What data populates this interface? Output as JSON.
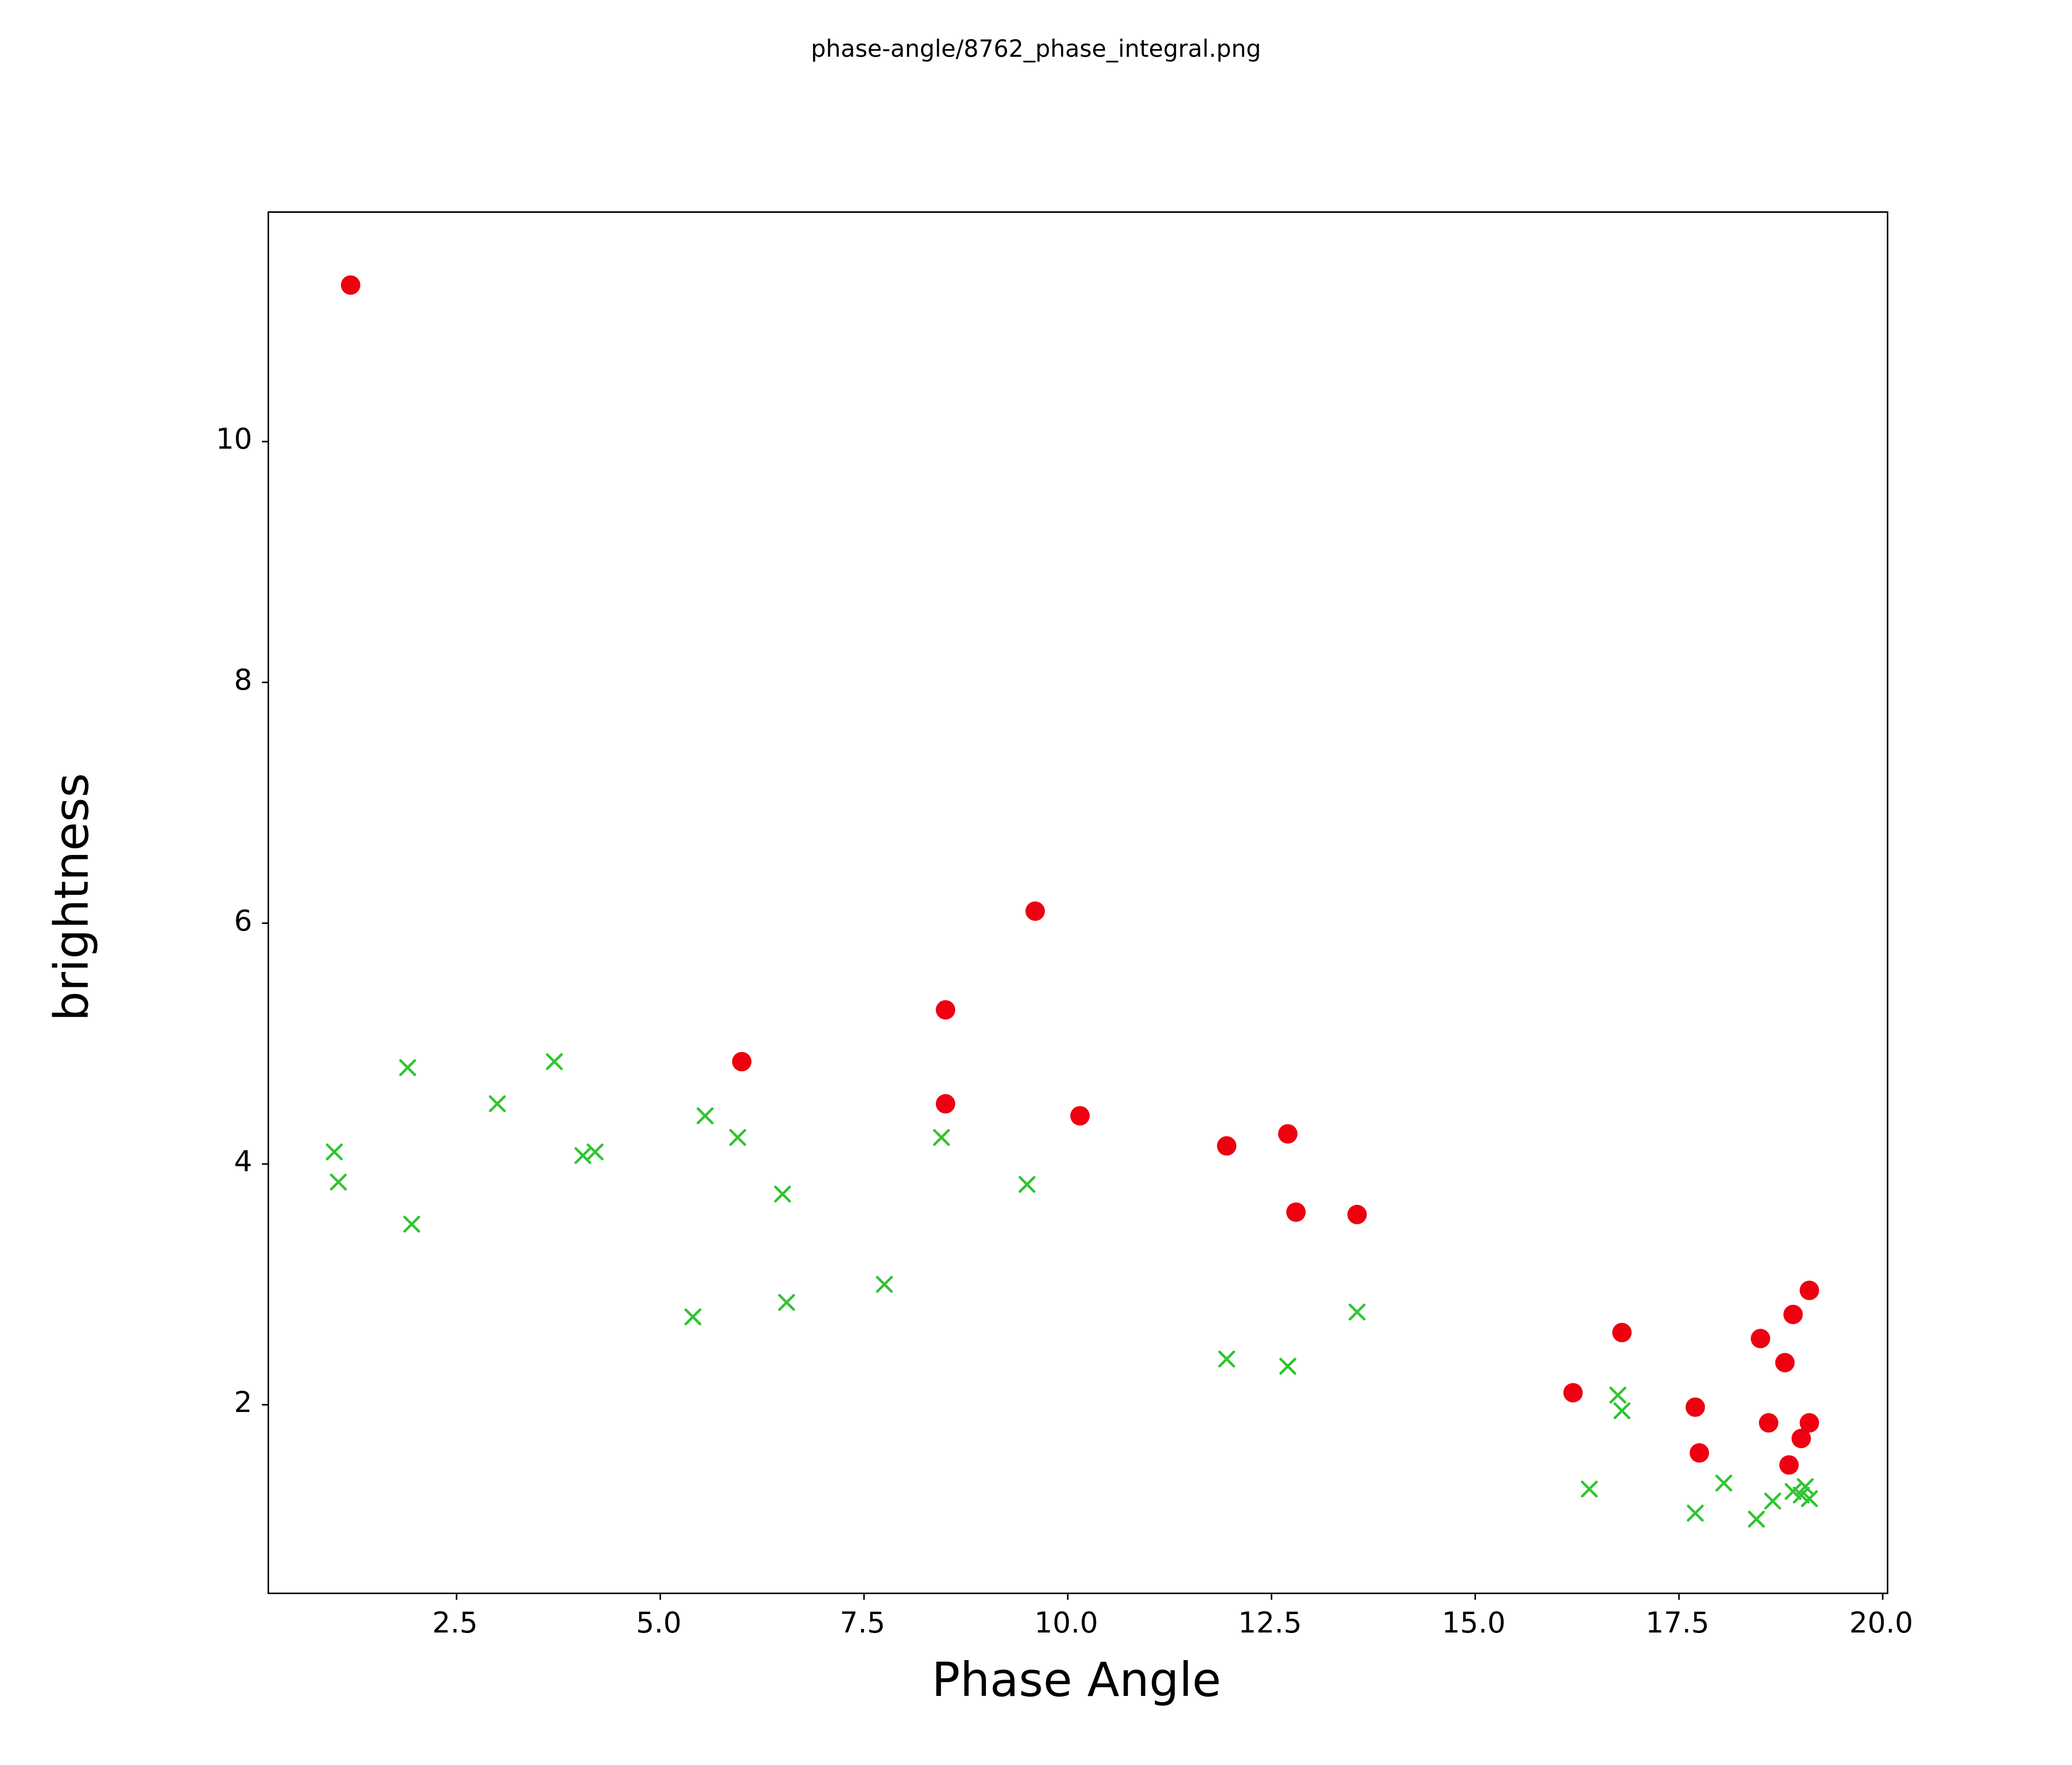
{
  "chart_data": {
    "type": "scatter",
    "title": "phase-angle/8762_phase_integral.png",
    "xlabel": "Phase Angle",
    "ylabel": "brightness",
    "xlim": [
      0.2,
      20.05
    ],
    "ylim": [
      0.44,
      11.9
    ],
    "grid": false,
    "legend_position": "none",
    "x_ticks": [
      2.5,
      5.0,
      7.5,
      10.0,
      12.5,
      15.0,
      17.5,
      20.0
    ],
    "x_tick_labels": [
      "2.5",
      "5.0",
      "7.5",
      "10.0",
      "12.5",
      "15.0",
      "17.5",
      "20.0"
    ],
    "y_ticks": [
      2,
      4,
      6,
      8,
      10
    ],
    "y_tick_labels": [
      "2",
      "4",
      "6",
      "8",
      "10"
    ],
    "series": [
      {
        "name": "red-circles",
        "marker": "circle",
        "color": "#ee0011",
        "points": [
          [
            1.2,
            11.3
          ],
          [
            6.0,
            4.85
          ],
          [
            8.5,
            5.28
          ],
          [
            8.5,
            4.5
          ],
          [
            9.6,
            6.1
          ],
          [
            10.15,
            4.4
          ],
          [
            11.95,
            4.15
          ],
          [
            12.7,
            4.25
          ],
          [
            12.8,
            3.6
          ],
          [
            13.55,
            3.58
          ],
          [
            16.2,
            2.1
          ],
          [
            16.8,
            2.6
          ],
          [
            17.7,
            1.98
          ],
          [
            17.75,
            1.6
          ],
          [
            18.5,
            2.55
          ],
          [
            18.6,
            1.85
          ],
          [
            18.8,
            2.35
          ],
          [
            18.9,
            2.75
          ],
          [
            18.85,
            1.5
          ],
          [
            19.0,
            1.72
          ],
          [
            19.1,
            2.95
          ],
          [
            19.1,
            1.85
          ]
        ]
      },
      {
        "name": "green-x",
        "marker": "x",
        "color": "#2fc52f",
        "points": [
          [
            1.0,
            4.1
          ],
          [
            1.05,
            3.85
          ],
          [
            1.9,
            4.8
          ],
          [
            1.95,
            3.5
          ],
          [
            3.0,
            4.5
          ],
          [
            3.7,
            4.85
          ],
          [
            4.05,
            4.07
          ],
          [
            4.2,
            4.1
          ],
          [
            5.4,
            2.73
          ],
          [
            5.55,
            4.4
          ],
          [
            5.95,
            4.22
          ],
          [
            6.5,
            3.75
          ],
          [
            6.55,
            2.85
          ],
          [
            7.75,
            3.0
          ],
          [
            8.45,
            4.22
          ],
          [
            9.5,
            3.83
          ],
          [
            11.95,
            2.38
          ],
          [
            12.7,
            2.32
          ],
          [
            13.55,
            2.77
          ],
          [
            16.4,
            1.3
          ],
          [
            16.75,
            2.08
          ],
          [
            16.8,
            1.95
          ],
          [
            17.7,
            1.1
          ],
          [
            18.05,
            1.35
          ],
          [
            18.45,
            1.05
          ],
          [
            18.65,
            1.2
          ],
          [
            18.9,
            1.28
          ],
          [
            19.0,
            1.25
          ],
          [
            19.05,
            1.32
          ],
          [
            19.1,
            1.22
          ]
        ]
      }
    ]
  }
}
